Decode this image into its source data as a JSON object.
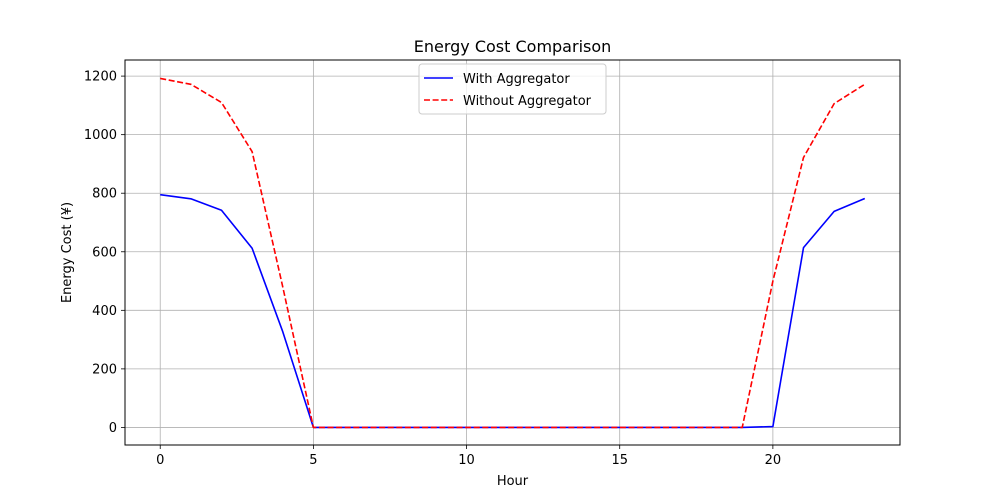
{
  "chart_data": {
    "type": "line",
    "title": "Energy Cost Comparison",
    "xlabel": "Hour",
    "ylabel": "Energy Cost (¥)",
    "xlim": [
      -1.15,
      24.15
    ],
    "ylim": [
      -60,
      1255
    ],
    "xticks": [
      0,
      5,
      10,
      15,
      20
    ],
    "yticks": [
      0,
      200,
      400,
      600,
      800,
      1000,
      1200
    ],
    "grid": true,
    "legend_position": "top-center",
    "x": [
      0,
      1,
      2,
      3,
      4,
      5,
      6,
      7,
      8,
      9,
      10,
      11,
      12,
      13,
      14,
      15,
      16,
      17,
      18,
      19,
      20,
      21,
      22,
      23
    ],
    "series": [
      {
        "name": "With Aggregator",
        "color": "#0000ff",
        "dash": "solid",
        "values": [
          795,
          781,
          742,
          612,
          327,
          0,
          0,
          0,
          0,
          0,
          0,
          0,
          0,
          0,
          0,
          0,
          0,
          0,
          0,
          0,
          3,
          614,
          738,
          782
        ]
      },
      {
        "name": "Without Aggregator",
        "color": "#ff0000",
        "dash": "dashed",
        "values": [
          1192,
          1172,
          1110,
          942,
          480,
          0,
          0,
          0,
          0,
          0,
          0,
          0,
          0,
          0,
          0,
          0,
          0,
          0,
          0,
          0,
          500,
          922,
          1106,
          1172
        ]
      }
    ]
  }
}
